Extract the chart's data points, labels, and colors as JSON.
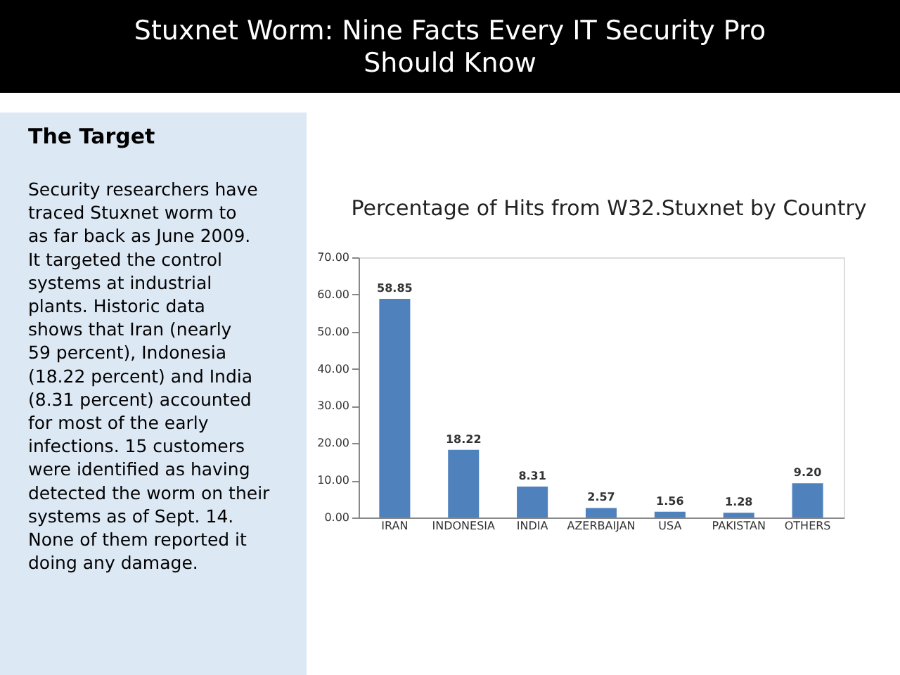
{
  "chart_data": {
    "type": "bar",
    "title": "Percentage of Hits from W32.Stuxnet by Country",
    "annotations": [
      "Stuxnet Worm: Nine Facts Every IT Security Pro\nShould Know",
      "The Target",
      "Security researchers have\ntraced Stuxnet worm to\nas far back as June 2009.\nIt targeted the control\nsystems at industrial\nplants. Historic data\nshows that Iran (nearly\n59 percent), Indonesia\n(18.22 percent) and India\n(8.31 percent) accounted\nfor most of the early\ninfections. 15 customers\nwere identified as having\ndetected the worm on their\nsystems as of Sept. 14.\nNone of them reported it\ndoing any damage."
    ],
    "categories": [
      "IRAN",
      "INDONESIA",
      "INDIA",
      "AZERBAIJAN",
      "USA",
      "PAKISTAN",
      "OTHERS"
    ],
    "values": [
      58.85,
      18.22,
      8.31,
      2.57,
      1.56,
      1.28,
      9.2
    ],
    "color": "#4f81bd",
    "ylim": [
      0,
      70
    ],
    "yticks": [
      {
        "value": 0,
        "label": "0.00"
      },
      {
        "value": 10,
        "label": "10.00"
      },
      {
        "value": 20,
        "label": "20.00"
      },
      {
        "value": 30,
        "label": "30.00"
      },
      {
        "value": 40,
        "label": "40.00"
      },
      {
        "value": 50,
        "label": "50.00"
      },
      {
        "value": 60,
        "label": "60.00"
      },
      {
        "value": 70,
        "label": "70.00"
      }
    ],
    "value_labels": [
      "58.85",
      "18.22",
      "8.31",
      "2.57",
      "1.56",
      "1.28",
      "9.20"
    ],
    "grid": false
  }
}
